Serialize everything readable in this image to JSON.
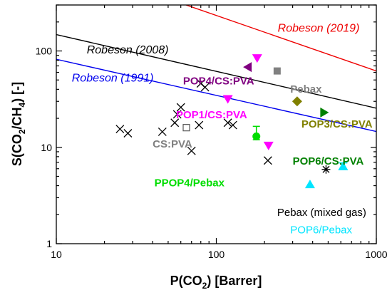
{
  "chart_data": {
    "type": "scatter",
    "xlabel": {
      "main": "P(CO",
      "sub": "2",
      "rest": ") [Barrer]"
    },
    "ylabel": {
      "pre": "S(CO",
      "sub1": "2",
      "mid": "/CH",
      "sub2": "4",
      "rest": ") [-]"
    },
    "x_scale": "log",
    "y_scale": "log",
    "xlim": [
      10,
      1000
    ],
    "ylim": [
      1,
      300
    ],
    "x_ticks": [
      {
        "value": 10,
        "label": "10"
      },
      {
        "value": 100,
        "label": "100"
      },
      {
        "value": 1000,
        "label": "1000"
      }
    ],
    "y_ticks": [
      {
        "value": 1,
        "label": "1"
      },
      {
        "value": 10,
        "label": "10"
      },
      {
        "value": 100,
        "label": "100"
      }
    ],
    "upper_bounds": [
      {
        "label": "Robeson (1991)",
        "color": "#0000ee",
        "points": [
          [
            10,
            82
          ],
          [
            1000,
            14.6
          ]
        ],
        "label_at": [
          12.5,
          48
        ]
      },
      {
        "label": "Robeson (2008)",
        "color": "#000000",
        "points": [
          [
            10,
            148
          ],
          [
            1000,
            25.5
          ]
        ],
        "label_at": [
          15.5,
          94
        ]
      },
      {
        "label": "Robeson (2019)",
        "color": "#ee0000",
        "points": [
          [
            10,
            880
          ],
          [
            1000,
            62
          ]
        ],
        "label_at": [
          242,
          159
        ]
      }
    ],
    "series": [
      {
        "name": "CS:PVA",
        "marker": "x",
        "color": "#000000",
        "points": [
          [
            25,
            15.5
          ],
          [
            28,
            14
          ],
          [
            46,
            14.5
          ],
          [
            55,
            18
          ],
          [
            57,
            22
          ],
          [
            60,
            26
          ],
          [
            70,
            9.2
          ],
          [
            78,
            17
          ],
          [
            80,
            46
          ],
          [
            85,
            42
          ],
          [
            118,
            18
          ],
          [
            127,
            17
          ],
          [
            210,
            7.3
          ]
        ]
      },
      {
        "name": "CS:PVA",
        "marker": "open-square",
        "color": "#555555",
        "points": [
          [
            65,
            16
          ]
        ]
      },
      {
        "name": "POP1/CS:PVA",
        "marker": "triangle-down",
        "color": "#ff00ff",
        "points": [
          [
            118,
            32
          ],
          [
            212,
            10.5
          ],
          [
            180,
            85
          ]
        ]
      },
      {
        "name": "POP4/CS:PVA",
        "marker": "triangle-left",
        "color": "#800080",
        "points": [
          [
            158,
            68
          ]
        ]
      },
      {
        "name": "Pebax",
        "marker": "square",
        "color": "#808080",
        "points": [
          [
            240,
            62
          ]
        ]
      },
      {
        "name": "POP3/CS:PVA",
        "marker": "diamond",
        "color": "#808000",
        "points": [
          [
            320,
            30
          ]
        ]
      },
      {
        "name": "POP6/CS:PVA",
        "marker": "triangle-right",
        "color": "#008000",
        "points": [
          [
            470,
            23
          ]
        ]
      },
      {
        "name": "PPOP4/Pebax",
        "marker": "circle",
        "color": "#00dd00",
        "points": [
          [
            178,
            13
          ]
        ],
        "error": [
          12,
          16.5
        ]
      },
      {
        "name": "Pebax (mixed gas)",
        "marker": "asterisk",
        "color": "#000000",
        "points": [
          [
            485,
            5.9
          ]
        ]
      },
      {
        "name": "POP6/Pebax",
        "marker": "triangle-up",
        "color": "#00e5ff",
        "points": [
          [
            385,
            4.1
          ],
          [
            620,
            6.3
          ]
        ],
        "error_y": [
          [
            620,
            5.9,
            6.9
          ]
        ]
      }
    ],
    "annotations": [
      {
        "text": "POP4/CS:PVA",
        "color": "#800080",
        "at": [
          62,
          45
        ],
        "style": "bold"
      },
      {
        "text": "Pebax",
        "color": "#808080",
        "at": [
          290,
          37
        ],
        "style": "bold"
      },
      {
        "text": "POP1/CS:PVA",
        "color": "#ff00ff",
        "at": [
          56,
          20
        ],
        "style": "bold"
      },
      {
        "text": "CS:PVA",
        "color": "#808080",
        "at": [
          40,
          10
        ],
        "style": "bold"
      },
      {
        "text": "POP3/CS:PVA",
        "color": "#808000",
        "at": [
          340,
          16
        ],
        "style": "bold"
      },
      {
        "text": "POP6/CS:PVA",
        "color": "#008000",
        "at": [
          300,
          6.6
        ],
        "style": "bold"
      },
      {
        "text": "PPOP4/Pebax",
        "color": "#00dd00",
        "at": [
          41,
          3.95
        ],
        "style": "bold"
      },
      {
        "text": "Pebax (mixed gas)",
        "color": "#000000",
        "at": [
          240,
          1.95
        ],
        "style": "plain"
      },
      {
        "text": "POP6/Pebax",
        "color": "#00e5ff",
        "at": [
          290,
          1.28
        ],
        "style": "plain"
      }
    ]
  }
}
